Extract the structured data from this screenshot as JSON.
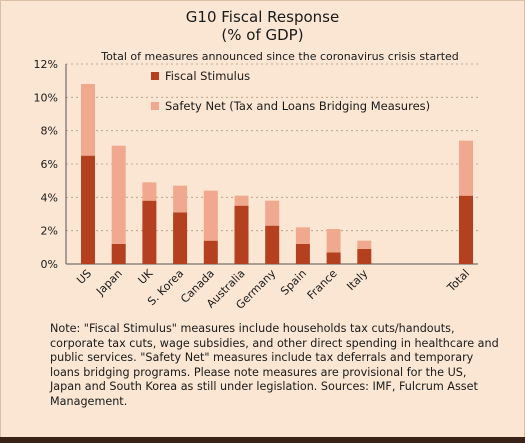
{
  "chart_data": {
    "type": "bar",
    "stacked": true,
    "title_line1": "G10 Fiscal Response",
    "title_line2": "(% of GDP)",
    "subtitle": "Total of measures announced since the coronavirus crisis started",
    "categories": [
      "US",
      "Japan",
      "UK",
      "S. Korea",
      "Canada",
      "Australia",
      "Germany",
      "Spain",
      "France",
      "Italy",
      "Total"
    ],
    "series": [
      {
        "name": "Fiscal Stimulus",
        "color": "#b5401f",
        "values": [
          6.5,
          1.2,
          3.8,
          3.1,
          1.4,
          3.5,
          2.3,
          1.2,
          0.7,
          0.9,
          4.1
        ]
      },
      {
        "name": "Safety Net (Tax and Loans Bridging Measures)",
        "color": "#f0a98e",
        "values": [
          4.3,
          5.9,
          1.1,
          1.6,
          3.0,
          0.6,
          1.5,
          1.0,
          1.4,
          0.5,
          3.3
        ]
      }
    ],
    "yticks": [
      "0%",
      "2%",
      "4%",
      "6%",
      "8%",
      "10%",
      "12%"
    ],
    "ylim": [
      0,
      12
    ],
    "grid": true,
    "legend_position": "top-center"
  },
  "note": "Note: \"Fiscal Stimulus\" measures include households tax cuts/handouts, corporate tax cuts, wage subsidies, and other direct spending in healthcare and public services. \"Safety Net\" measures include tax deferrals and temporary loans bridging programs. Please note measures are provisional for the US, Japan and South Korea as still under legislation. Sources: IMF, Fulcrum Asset Management."
}
